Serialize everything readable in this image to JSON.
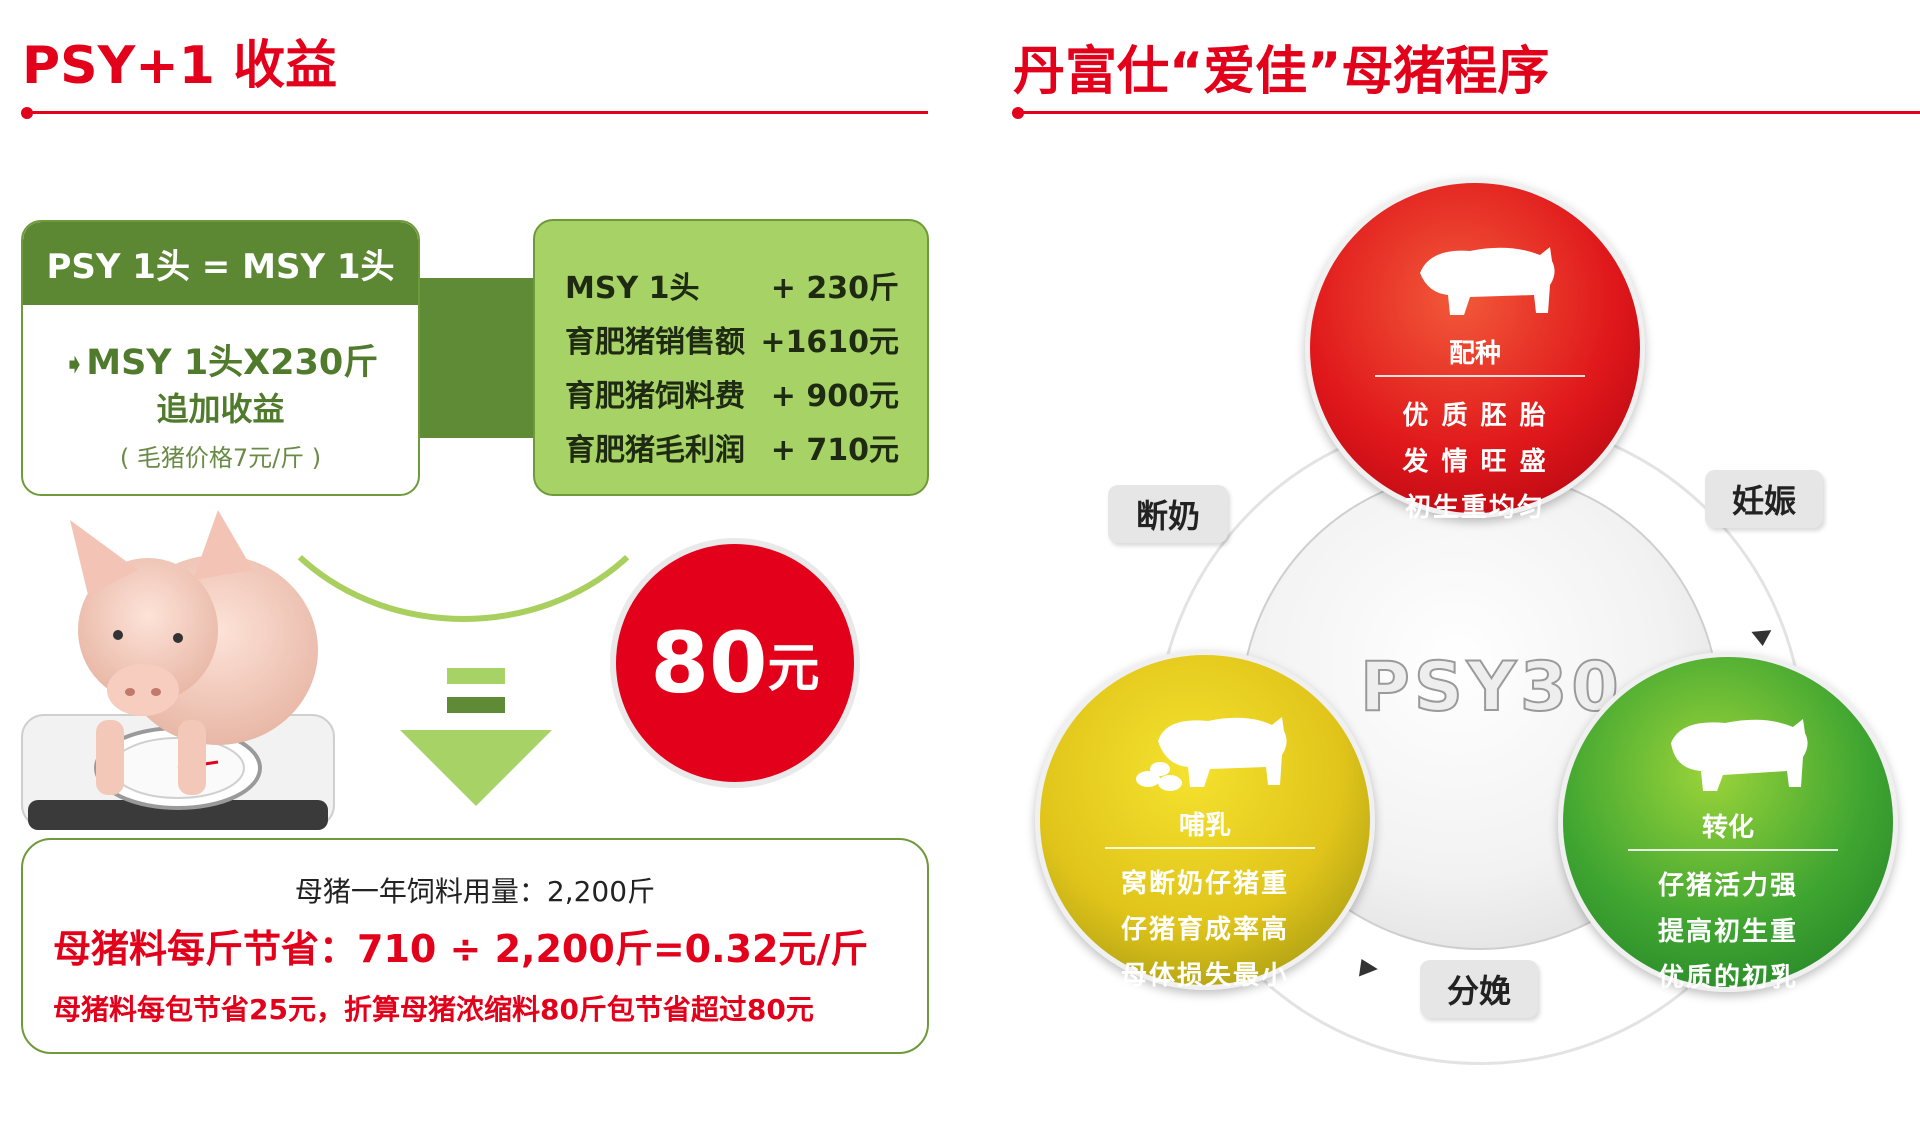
{
  "left": {
    "title": "PSY+1 收益",
    "psy_box": {
      "header": "PSY 1头 = MSY 1头",
      "line1": "MSY 1头X230斤",
      "line2": "追加收益",
      "line3": "( 毛猪价格7元/斤 )"
    },
    "msy_box": {
      "rows": [
        {
          "label": "MSY 1头",
          "value": "+ 230斤"
        },
        {
          "label": "育肥猪销售额",
          "value": "+1610元"
        },
        {
          "label": "育肥猪饲料费",
          "value": "+ 900元"
        },
        {
          "label": "育肥猪毛利润",
          "value": "+ 710元"
        }
      ]
    },
    "result": {
      "number": "80",
      "unit": "元"
    },
    "bottom": {
      "line1": "母猪一年饲料用量：2,200斤",
      "line2": "母猪料每斤节省：710 ÷ 2,200斤=0.32元/斤",
      "line3": "母猪料每包节省25元，折算母猪浓缩料80斤包节省超过80元"
    }
  },
  "right": {
    "title": "丹富仕“爱佳”母猪程序",
    "center_label": "PSY30",
    "stages": {
      "red": {
        "title": "配种",
        "items": [
          "优 质 胚 胎",
          "发 情 旺 盛",
          "初生重均匀"
        ]
      },
      "green": {
        "title": "转化",
        "items": [
          "仔猪活力强",
          "提高初生重",
          "优质的初乳"
        ]
      },
      "yellow": {
        "title": "哺乳",
        "items": [
          "窝断奶仔猪重",
          "仔猪育成率高",
          "母体损失最小"
        ]
      }
    },
    "transitions": {
      "weaning": "断奶",
      "pregnancy": "妊娠",
      "farrowing": "分娩"
    }
  }
}
